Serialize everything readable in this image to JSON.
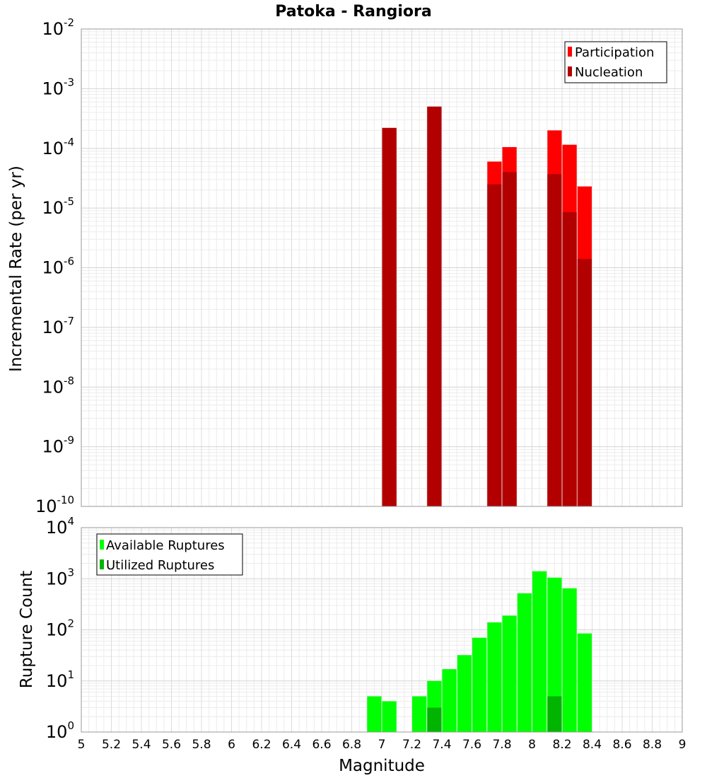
{
  "chart_data": [
    {
      "type": "bar",
      "title": "Patoka - Rangiora",
      "xlabel": "",
      "ylabel": "Incremental Rate (per yr)",
      "yscale": "log",
      "xlim": [
        5,
        9
      ],
      "ylim": [
        1e-10,
        0.01
      ],
      "grid": true,
      "legend_position": "top-right",
      "series": [
        {
          "name": "Participation",
          "color": "#ff0000",
          "x": [
            7.05,
            7.35,
            7.75,
            7.85,
            8.15,
            8.25,
            8.35
          ],
          "values": [
            0.00022,
            0.0005,
            6e-05,
            0.000105,
            0.0002,
            0.000115,
            2.3e-05
          ]
        },
        {
          "name": "Nucleation",
          "color": "#b20000",
          "x": [
            7.05,
            7.35,
            7.75,
            7.85,
            8.15,
            8.25,
            8.35
          ],
          "values": [
            0.00022,
            0.0005,
            2.5e-05,
            4e-05,
            3.7e-05,
            8.5e-06,
            1.4e-06
          ]
        }
      ]
    },
    {
      "type": "bar",
      "title": "",
      "xlabel": "Magnitude",
      "ylabel": "Rupture Count",
      "yscale": "log",
      "xlim": [
        5,
        9
      ],
      "ylim": [
        1,
        10000
      ],
      "x_ticks": [
        "5",
        "5.2",
        "5.4",
        "5.6",
        "5.8",
        "6",
        "6.2",
        "6.4",
        "6.6",
        "6.8",
        "7",
        "7.2",
        "7.4",
        "7.6",
        "7.8",
        "8",
        "8.2",
        "8.4",
        "8.6",
        "8.8",
        "9"
      ],
      "grid": true,
      "legend_position": "top-left",
      "series": [
        {
          "name": "Available Ruptures",
          "color": "#00ff00",
          "x": [
            6.95,
            7.05,
            7.25,
            7.35,
            7.45,
            7.55,
            7.65,
            7.75,
            7.85,
            7.95,
            8.05,
            8.15,
            8.25,
            8.35
          ],
          "values": [
            5,
            4,
            5,
            10,
            17,
            32,
            70,
            140,
            190,
            520,
            1400,
            1050,
            650,
            85
          ]
        },
        {
          "name": "Utilized Ruptures",
          "color": "#00b400",
          "x": [
            7.05,
            7.35,
            7.75,
            7.85,
            8.15,
            8.25,
            8.35
          ],
          "values": [
            1,
            3,
            1,
            1,
            5,
            1,
            1
          ]
        }
      ]
    }
  ]
}
